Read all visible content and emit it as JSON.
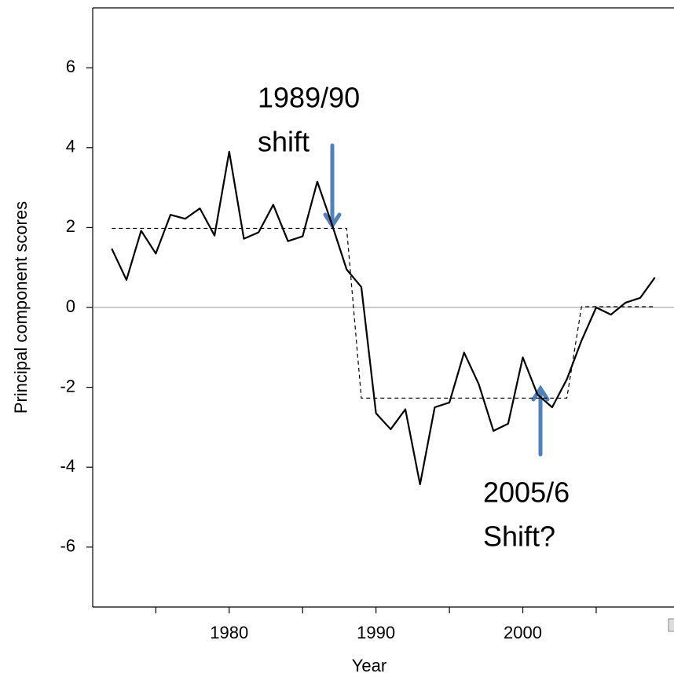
{
  "chart_data": {
    "type": "line",
    "x_label": "Year",
    "y_label": "Principal component scores",
    "xlim": [
      1970.7,
      2010.3
    ],
    "xticks": [
      1980,
      1990,
      2000
    ],
    "xminor_ticks": [
      1975,
      1985,
      1995,
      2005
    ],
    "ylim": [
      -7.5,
      7.5
    ],
    "yticks": [
      -6,
      -4,
      -2,
      0,
      2,
      4,
      6
    ],
    "zero_line": true,
    "series": [
      {
        "color": "#000000",
        "dash": false,
        "x": [
          1972,
          1973,
          1974,
          1975,
          1976,
          1977,
          1978,
          1979,
          1980,
          1981,
          1982,
          1983,
          1984,
          1985,
          1986,
          1987,
          1988,
          1989,
          1990,
          1991,
          1992,
          1993,
          1994,
          1995,
          1996,
          1997,
          1998,
          1999,
          2000,
          2001,
          2002,
          2003,
          2004,
          2005,
          2006,
          2007,
          2008,
          2009
        ],
        "values": [
          1.47,
          0.69,
          1.92,
          1.35,
          2.32,
          2.22,
          2.48,
          1.8,
          3.9,
          1.72,
          1.88,
          2.57,
          1.66,
          1.78,
          3.15,
          2.08,
          0.95,
          0.51,
          -2.65,
          -3.05,
          -2.55,
          -4.43,
          -2.5,
          -2.38,
          -1.13,
          -1.92,
          -3.09,
          -2.91,
          -1.25,
          -2.18,
          -2.5,
          -1.8,
          -0.83,
          0,
          -0.18,
          0.12,
          0.24,
          0.75
        ]
      },
      {
        "color": "#000000",
        "dash": true,
        "x": [
          1972,
          1988,
          1989,
          2003,
          2004,
          2009
        ],
        "values": [
          1.98,
          1.98,
          -2.27,
          -2.27,
          0.02,
          0.02
        ]
      }
    ],
    "annotations": [
      {
        "lines": [
          "1989/90",
          "shift"
        ]
      },
      {
        "lines": [
          "2005/6",
          "Shift?"
        ]
      }
    ]
  }
}
